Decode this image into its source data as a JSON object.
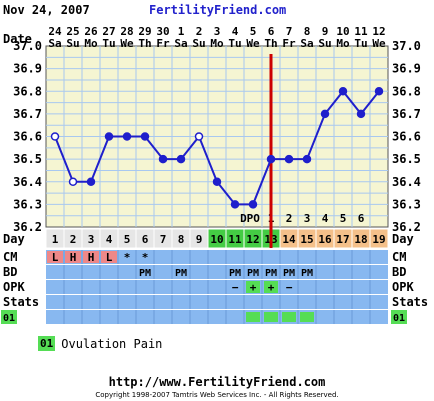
{
  "header": {
    "date": "Nov 24, 2007",
    "site": "FertilityFriend.com"
  },
  "chart_data": {
    "type": "line",
    "ylim": [
      36.2,
      37.0
    ],
    "y_ticks": [
      "37.0",
      "36.9",
      "36.8",
      "36.7",
      "36.6",
      "36.5",
      "36.4",
      "36.3",
      "36.2"
    ],
    "row_labels": {
      "date": "Date",
      "day": "Day",
      "cm": "CM",
      "bd": "BD",
      "opk": "OPK",
      "stats": "Stats",
      "code": "01"
    },
    "dates": [
      "24",
      "25",
      "26",
      "27",
      "28",
      "29",
      "30",
      "1",
      "2",
      "3",
      "4",
      "5",
      "6",
      "7",
      "8",
      "9",
      "10",
      "11",
      "12"
    ],
    "weekdays": [
      "Sa",
      "Su",
      "Mo",
      "Tu",
      "We",
      "Th",
      "Fr",
      "Sa",
      "Su",
      "Mo",
      "Tu",
      "We",
      "Th",
      "Fr",
      "Sa",
      "Su",
      "Mo",
      "Tu",
      "We"
    ],
    "cycle_days": [
      "1",
      "2",
      "3",
      "4",
      "5",
      "6",
      "7",
      "8",
      "9",
      "10",
      "11",
      "12",
      "13",
      "14",
      "15",
      "16",
      "17",
      "18",
      "19"
    ],
    "day_colors": [
      "#e6e6e6",
      "#e6e6e6",
      "#e6e6e6",
      "#e6e6e6",
      "#e6e6e6",
      "#e6e6e6",
      "#e6e6e6",
      "#e6e6e6",
      "#e6e6e6",
      "#44cc44",
      "#44cc44",
      "#44cc44",
      "#44cc44",
      "#f4c08a",
      "#f4c08a",
      "#f4c08a",
      "#f4c08a",
      "#f4c08a",
      "#f4c08a"
    ],
    "temperatures": [
      36.6,
      36.4,
      36.4,
      36.6,
      36.6,
      36.6,
      36.5,
      36.5,
      36.6,
      36.4,
      36.3,
      36.3,
      36.5,
      36.5,
      36.5,
      36.7,
      36.8,
      36.7,
      36.8
    ],
    "open_points": [
      0,
      1,
      8
    ],
    "dpo_labels": [
      "DPO",
      "1",
      "2",
      "3",
      "4",
      "5",
      "6"
    ],
    "ovulation_index": 12,
    "cm": [
      "L",
      "H",
      "H",
      "L",
      "*",
      "*",
      "",
      "",
      "",
      "",
      "",
      "",
      "",
      "",
      "",
      "",
      "",
      "",
      ""
    ],
    "cm_highlight": [
      true,
      true,
      true,
      true,
      false,
      false,
      false,
      false,
      false,
      false,
      false,
      false,
      false,
      false,
      false,
      false,
      false,
      false,
      false
    ],
    "bd": [
      "",
      "",
      "",
      "",
      "",
      "PM",
      "",
      "PM",
      "",
      "",
      "PM",
      "PM",
      "PM",
      "PM",
      "PM",
      "",
      "",
      "",
      ""
    ],
    "opk": [
      "",
      "",
      "",
      "",
      "",
      "",
      "",
      "",
      "",
      "",
      "−",
      "+",
      "+",
      "−",
      "",
      "",
      "",
      "",
      ""
    ],
    "opk_highlight": [
      false,
      false,
      false,
      false,
      false,
      false,
      false,
      false,
      false,
      false,
      false,
      true,
      true,
      false,
      false,
      false,
      false,
      false,
      false
    ],
    "code_highlight": [
      false,
      false,
      false,
      false,
      false,
      false,
      false,
      false,
      false,
      false,
      false,
      true,
      true,
      true,
      true,
      false,
      false,
      false,
      false
    ],
    "colors": {
      "plot_bg": "#f5f5d2",
      "grid": "#a8c8f0",
      "line": "#1f1fcc",
      "ovulation_line": "#cc0000",
      "entry_rows": "#88b8f0",
      "day_default": "#e6e6e6",
      "fertile": "#44cc44",
      "luteal": "#f4c08a",
      "cm_highlight": "#ee8888",
      "marker_green": "#55dd55"
    }
  },
  "legend": {
    "code": "01",
    "label": "Ovulation Pain"
  },
  "footer": {
    "url": "http://www.FertilityFriend.com",
    "copyright": "Copyright 1998-2007 Tamtris Web Services Inc. - All Rights Reserved."
  }
}
